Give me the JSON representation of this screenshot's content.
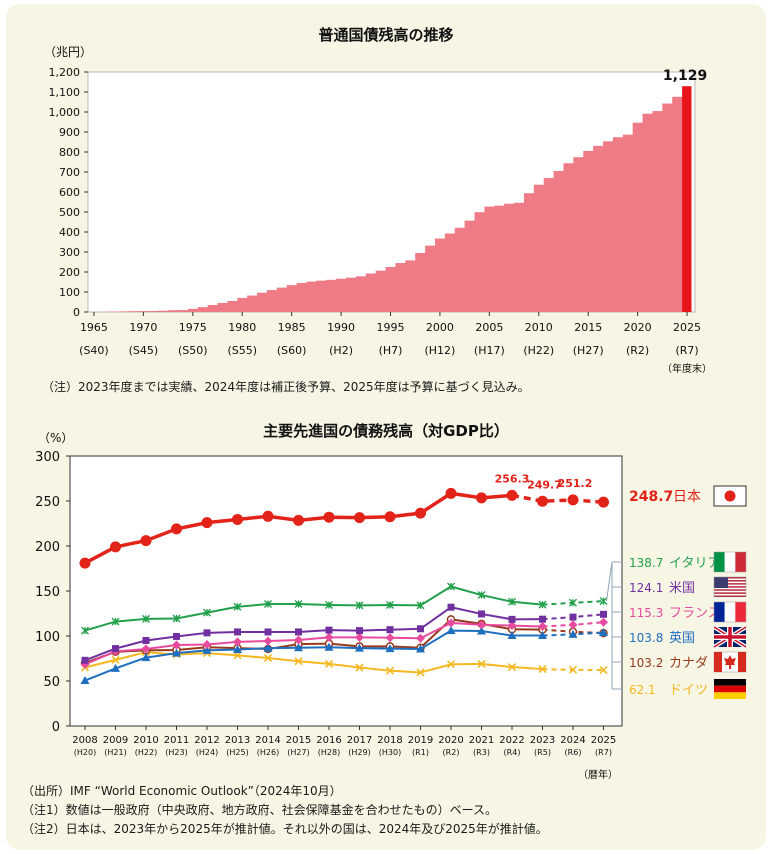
{
  "chart_data": [
    {
      "type": "bar",
      "title": "普通国債残高の推移",
      "ylabel": "（兆円）",
      "xlabel_unit": "（年度末）",
      "ylim": [
        0,
        1200
      ],
      "yticks": [
        0,
        100,
        200,
        300,
        400,
        500,
        600,
        700,
        800,
        900,
        1000,
        1100,
        1200
      ],
      "ytick_labels": [
        "0",
        "100",
        "200",
        "300",
        "400",
        "500",
        "600",
        "700",
        "800",
        "900",
        "1,000",
        "1,100",
        "1,200"
      ],
      "years_start": 1965,
      "values": [
        0.2,
        0.9,
        2,
        3,
        4,
        4.6,
        5.2,
        6.5,
        8.8,
        9.7,
        15.8,
        24.2,
        35,
        45,
        55,
        70.5,
        82.3,
        96.5,
        109.7,
        121.7,
        134.4,
        145.1,
        151.8,
        156.8,
        160.9,
        166.3,
        171.6,
        178.4,
        192.5,
        206.6,
        225.2,
        244.7,
        258,
        295.2,
        331.7,
        367.6,
        392.4,
        421.1,
        456.9,
        499,
        526.9,
        531.7,
        541.5,
        546,
        593.9,
        636.3,
        669.9,
        705,
        743.9,
        774.1,
        805.4,
        830.6,
        853.2,
        874,
        886.7,
        946.6,
        991.4,
        1004.6,
        1042.4,
        1076,
        1129
      ],
      "highlight_last": true,
      "highlight_label": "1,129",
      "xtick_years": [
        1965,
        1970,
        1975,
        1980,
        1985,
        1990,
        1995,
        2000,
        2005,
        2010,
        2015,
        2020,
        2025
      ],
      "xtick_labels": [
        "1965",
        "1970",
        "1975",
        "1980",
        "1985",
        "1990",
        "1995",
        "2000",
        "2005",
        "2010",
        "2015",
        "2020",
        "2025"
      ],
      "era_labels": [
        "(S40)",
        "(S45)",
        "(S50)",
        "(S55)",
        "(S60)",
        "(H2)",
        "(H7)",
        "(H12)",
        "(H17)",
        "(H22)",
        "(H27)",
        "(R2)",
        "(R7)"
      ],
      "colors": {
        "bar": "#ee7b85",
        "highlight": "#e8141c"
      },
      "note": "（注）2023年度までは実績、2024年度は補正後予算、2025年度は予算に基づく見込み。"
    },
    {
      "type": "line",
      "title": "主要先進国の債務残高（対GDP比）",
      "ylabel": "（%）",
      "xlabel_unit": "（暦年）",
      "ylim": [
        0,
        300
      ],
      "yticks": [
        0,
        50,
        100,
        150,
        200,
        250,
        300
      ],
      "x": [
        "2008",
        "2009",
        "2010",
        "2011",
        "2012",
        "2013",
        "2014",
        "2015",
        "2016",
        "2017",
        "2018",
        "2019",
        "2020",
        "2021",
        "2022",
        "2023",
        "2024",
        "2025"
      ],
      "x_era": [
        "(H20)",
        "(H21)",
        "(H22)",
        "(H23)",
        "(H24)",
        "(H25)",
        "(H26)",
        "(H27)",
        "(H28)",
        "(H29)",
        "(H30)",
        "(R1)",
        "(R2)",
        "(R3)",
        "(R4)",
        "(R5)",
        "(R6)",
        "(R7)"
      ],
      "series": [
        {
          "name": "日本",
          "label_value": "248.7",
          "color": "#e2231a",
          "marker": "circle",
          "flag": "japan-flag",
          "estimate_from": 2023,
          "values": [
            181,
            199,
            206,
            219,
            226,
            229.5,
            233,
            228.5,
            232,
            231.5,
            232.5,
            236.5,
            258.5,
            253.5,
            256.3,
            249.7,
            251.2,
            248.7
          ]
        },
        {
          "name": "イタリア",
          "label_value": "138.7",
          "color": "#22a04b",
          "marker": "cross",
          "flag": "italy-flag",
          "estimate_from": 2024,
          "values": [
            106,
            116,
            119,
            119.5,
            126,
            132.5,
            135.5,
            135.5,
            134.5,
            134,
            134.5,
            134,
            155,
            145.5,
            138,
            134.8,
            136.9,
            138.7
          ]
        },
        {
          "name": "米国",
          "label_value": "124.1",
          "color": "#7030a0",
          "marker": "square",
          "flag": "usa-flag",
          "estimate_from": 2024,
          "values": [
            73,
            86,
            95,
            99.5,
            103.5,
            104.5,
            104.5,
            104.5,
            106.5,
            106,
            107,
            108,
            132,
            124.5,
            118.5,
            118.7,
            121,
            124.1
          ]
        },
        {
          "name": "フランス",
          "label_value": "115.3",
          "color": "#e84b9e",
          "marker": "diamond",
          "flag": "france-flag",
          "estimate_from": 2024,
          "values": [
            68.5,
            83,
            85.5,
            90,
            90.5,
            93.5,
            94.5,
            95.5,
            98.5,
            98.5,
            98,
            97.5,
            114.5,
            112.5,
            111.5,
            110.6,
            112.3,
            115.3
          ]
        },
        {
          "name": "英国",
          "label_value": "103.8",
          "color": "#1f6fbf",
          "marker": "triangle",
          "flag": "uk-flag",
          "estimate_from": 2024,
          "values": [
            50.5,
            64,
            76,
            81,
            84,
            85,
            86.5,
            87,
            87.5,
            86.5,
            86,
            85.5,
            106,
            105.5,
            100.5,
            100.5,
            101.8,
            103.8
          ]
        },
        {
          "name": "カナダ",
          "label_value": "103.2",
          "color": "#963a1e",
          "marker": "ring",
          "flag": "canada-flag",
          "estimate_from": 2024,
          "values": [
            70,
            82.5,
            84,
            84.5,
            87.5,
            86.5,
            85.5,
            91,
            91.5,
            88.5,
            88.5,
            87,
            118.5,
            113.5,
            107.5,
            107.1,
            104.7,
            103.2
          ]
        },
        {
          "name": "ドイツ",
          "label_value": "62.1",
          "color": "#f5b821",
          "marker": "x",
          "flag": "germany-flag",
          "estimate_from": 2024,
          "values": [
            65,
            73.5,
            82,
            79.5,
            81,
            78.5,
            75.5,
            72,
            69,
            65,
            61.5,
            59.5,
            68.5,
            69,
            65.5,
            63.2,
            62.4,
            62.1
          ]
        }
      ],
      "data_labels": [
        "256.3",
        "249.7",
        "251.2"
      ],
      "notes": [
        "（出所）IMF “World Economic Outlook”（2024年10月）",
        "（注1）数値は一般政府（中央政府、地方政府、社会保障基金を合わせたもの）ベース。",
        "（注2）日本は、2023年から2025年が推計値。それ以外の国は、2024年及び2025年が推計値。"
      ]
    }
  ]
}
